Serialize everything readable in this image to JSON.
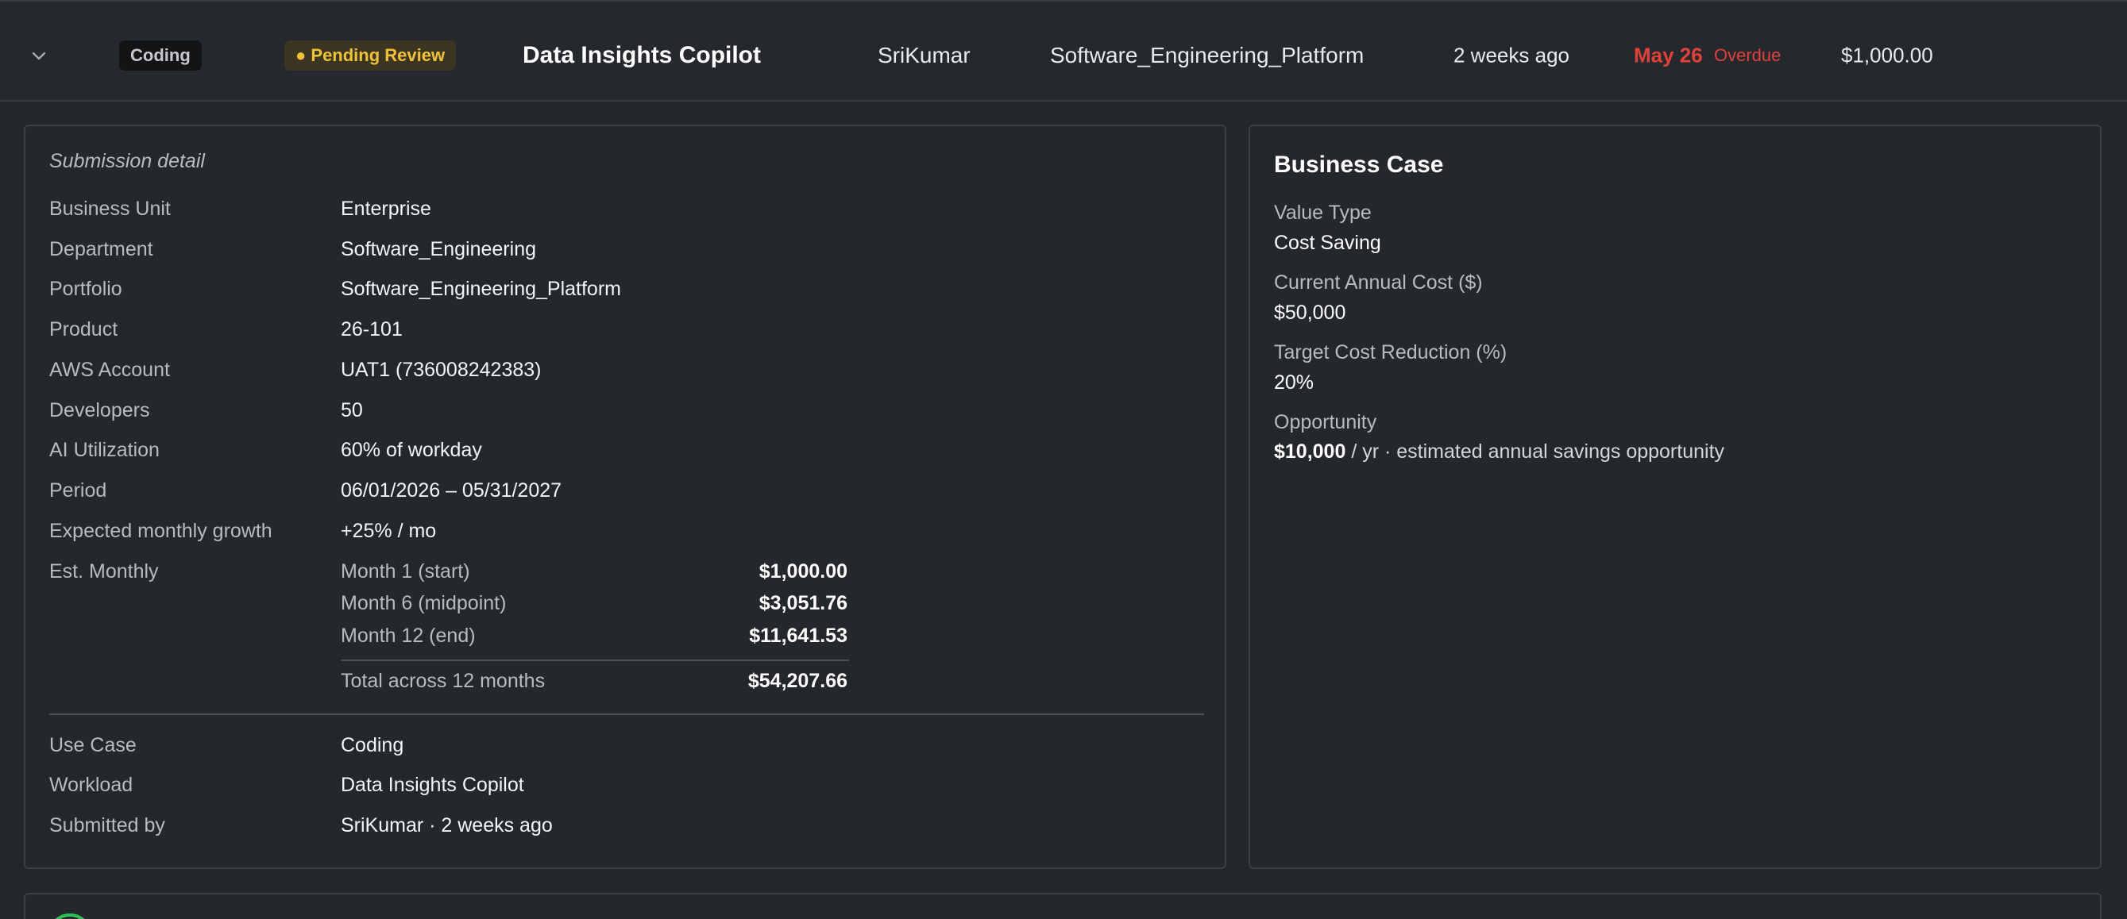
{
  "row": {
    "use_case_tag": "Coding",
    "status_tag": "● Pending Review",
    "workload": "Data Insights Copilot",
    "submitter": "SriKumar",
    "portfolio": "Software_Engineering_Platform",
    "age": "2 weeks ago",
    "due_date": "May 26",
    "due_status": "Overdue",
    "amount": "$1,000.00",
    "colors": {
      "overdue": "#e0413a",
      "pending": "#f0c23a"
    }
  },
  "submission": {
    "title": "Submission detail",
    "fields": [
      {
        "label": "Business Unit",
        "value": "Enterprise"
      },
      {
        "label": "Department",
        "value": "Software_Engineering"
      },
      {
        "label": "Portfolio",
        "value": "Software_Engineering_Platform"
      },
      {
        "label": "Product",
        "value": "26-101"
      },
      {
        "label": "AWS Account",
        "value": "UAT1 (736008242383)"
      },
      {
        "label": "Developers",
        "value": "50"
      },
      {
        "label": "AI Utilization",
        "value": "60% of workday"
      },
      {
        "label": "Period",
        "value": "06/01/2026 – 05/31/2027"
      },
      {
        "label": "Expected monthly growth",
        "value": "+25% / mo"
      }
    ],
    "est_label": "Est. Monthly",
    "estimates": [
      {
        "label": "Month 1 (start)",
        "value": "$1,000.00"
      },
      {
        "label": "Month 6 (midpoint)",
        "value": "$3,051.76"
      },
      {
        "label": "Month 12 (end)",
        "value": "$11,641.53"
      }
    ],
    "total": {
      "label": "Total across 12 months",
      "value": "$54,207.66"
    },
    "extra": [
      {
        "label": "Use Case",
        "value": "Coding"
      },
      {
        "label": "Workload",
        "value": "Data Insights Copilot"
      },
      {
        "label": "Submitted by",
        "value": "SriKumar · 2 weeks ago"
      }
    ]
  },
  "business_case": {
    "title": "Business Case",
    "value_type_label": "Value Type",
    "value_type": "Cost Saving",
    "current_cost_label": "Current Annual Cost ($)",
    "current_cost": "$50,000",
    "target_reduction_label": "Target Cost Reduction (%)",
    "target_reduction": "20%",
    "opportunity_label": "Opportunity",
    "opportunity_amount": "$10,000",
    "opportunity_suffix": " / yr · estimated annual savings opportunity"
  }
}
